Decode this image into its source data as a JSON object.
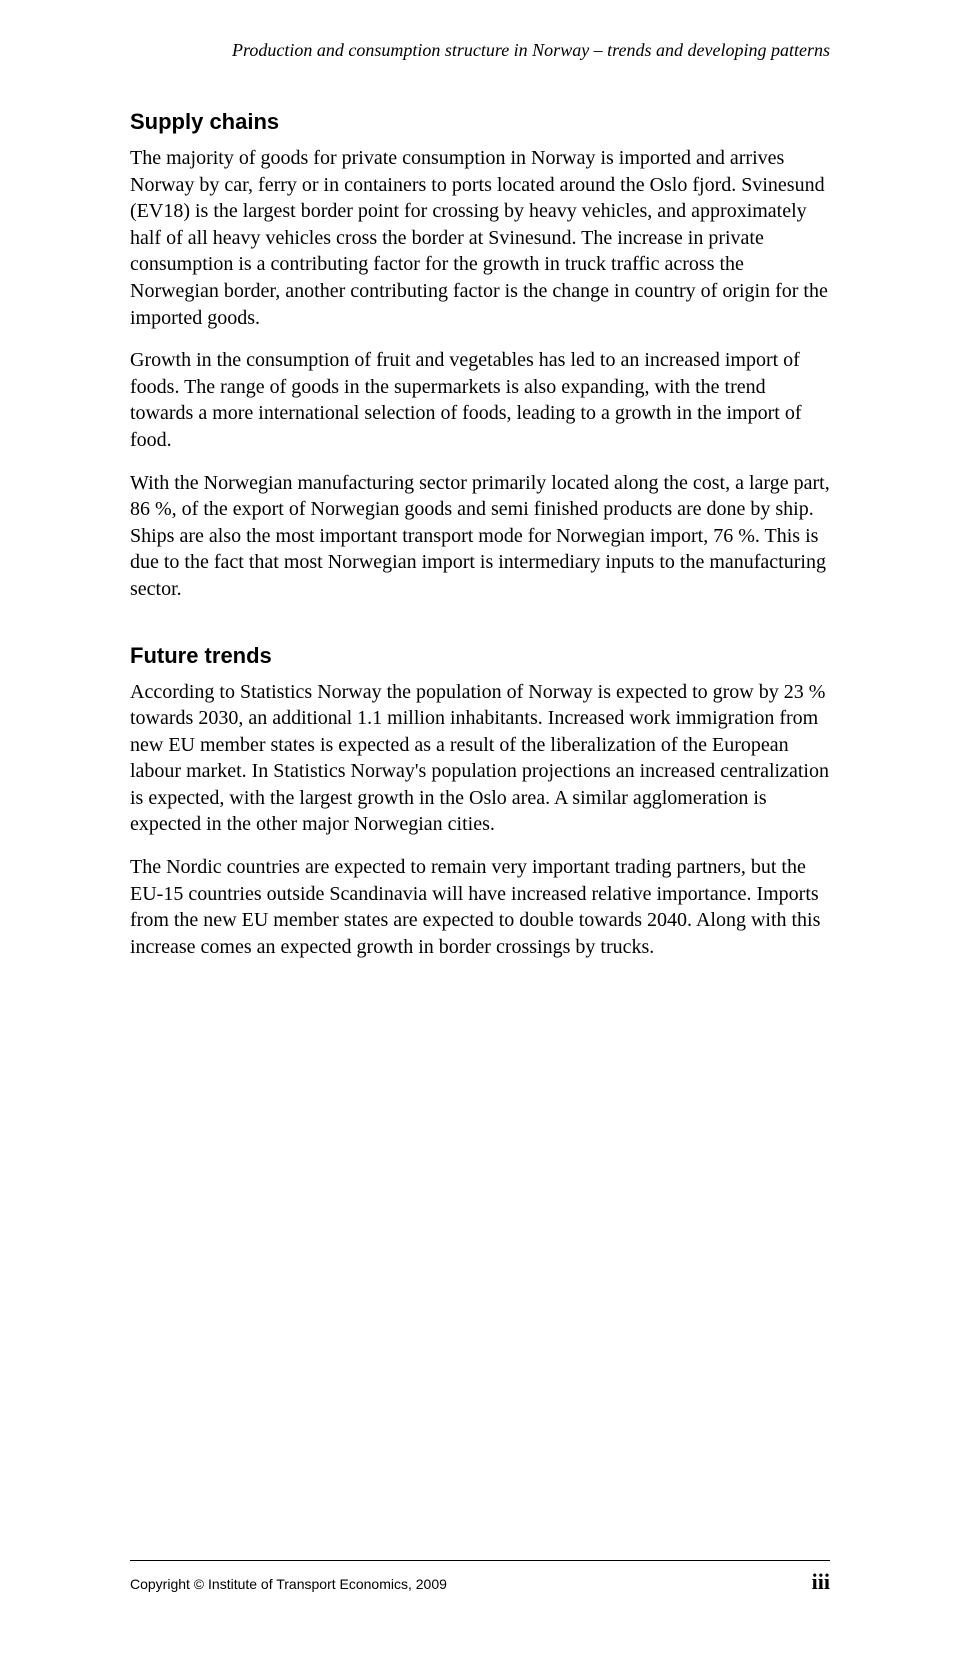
{
  "running_header": "Production and consumption structure in Norway – trends and developing patterns",
  "sections": {
    "supply_chains": {
      "heading": "Supply chains",
      "paragraphs": [
        "The majority of goods for private consumption in Norway is imported and arrives Norway by car, ferry or in containers to ports located around the Oslo fjord. Svinesund (EV18) is the largest border point for crossing by heavy vehicles, and approximately half of all heavy vehicles cross the border at Svinesund. The increase in private consumption is a contributing factor for the growth in truck traffic across the Norwegian border, another contributing factor is the change in country of origin for the imported goods.",
        "Growth in the consumption of fruit and vegetables has led to an increased import of foods. The range of goods in the supermarkets is also expanding, with the trend towards a more international selection of foods, leading to a growth in the import of food.",
        "With the Norwegian manufacturing sector primarily located along the cost, a large part, 86 %, of the export of Norwegian goods and semi finished products are done by ship. Ships are also the most important transport mode for Norwegian import, 76 %. This is due to the fact that most Norwegian import is intermediary inputs to the manufacturing sector."
      ]
    },
    "future_trends": {
      "heading": "Future trends",
      "paragraphs": [
        "According to Statistics Norway the population of Norway is expected to grow by 23 % towards 2030, an additional 1.1 million inhabitants. Increased work immigration from new EU member states is expected as a result of the liberalization of the European labour market. In Statistics Norway's population projections an increased centralization is expected, with the largest growth in the Oslo area. A similar agglomeration is expected in the other major Norwegian cities.",
        "The Nordic countries are expected to remain very important trading partners, but the EU-15 countries outside Scandinavia will have increased relative importance. Imports from the new EU member states are expected to double towards 2040. Along with this increase comes an expected growth in border crossings by trucks."
      ]
    }
  },
  "footer": {
    "copyright": "Copyright © Institute of Transport Economics, 2009",
    "page_number": "iii"
  }
}
